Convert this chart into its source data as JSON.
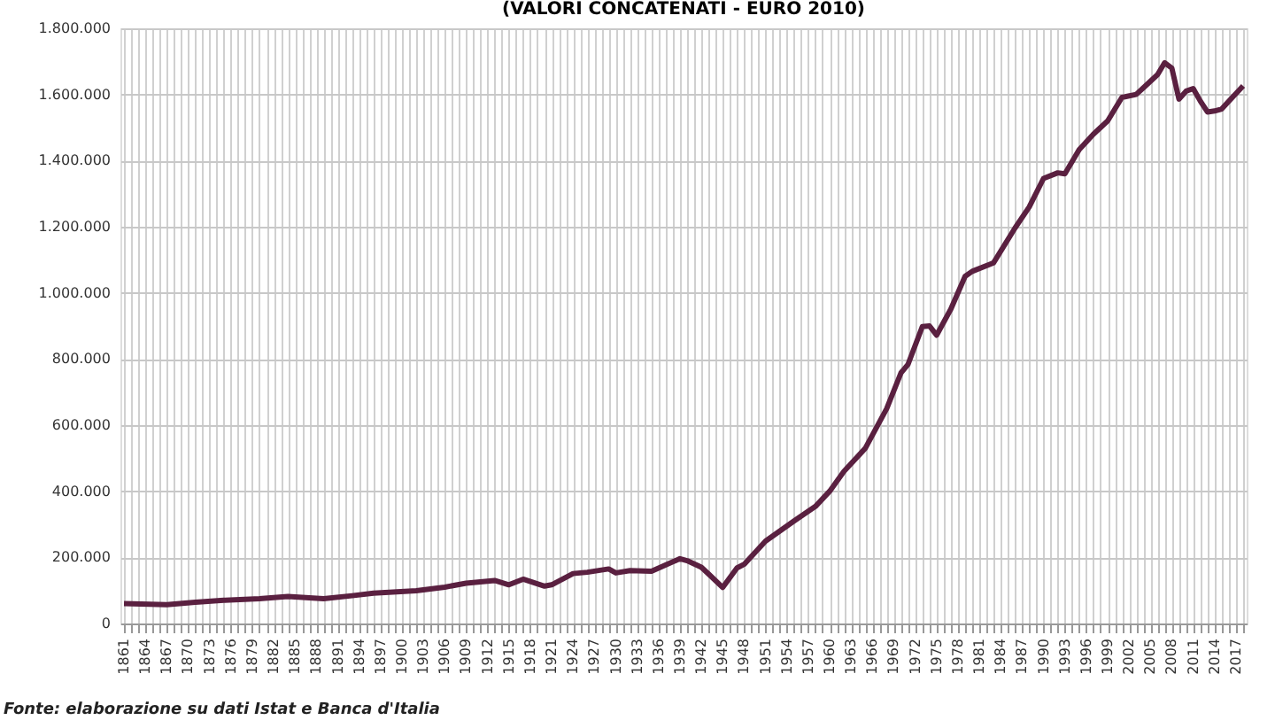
{
  "chart_data": {
    "type": "line",
    "title": "(VALORI CONCATENATI - EURO 2010)",
    "annotations": [
      "Fonte: elaborazione su dati Istat e Banca d'Italia"
    ],
    "x": [
      1861,
      1867,
      1871,
      1875,
      1880,
      1884,
      1889,
      1893,
      1896,
      1902,
      1906,
      1909,
      1913,
      1915,
      1917,
      1920,
      1921,
      1924,
      1926,
      1929,
      1930,
      1932,
      1935,
      1939,
      1940,
      1942,
      1943,
      1945,
      1947,
      1948,
      1951,
      1955,
      1958,
      1960,
      1962,
      1965,
      1968,
      1970,
      1971,
      1973,
      1974,
      1975,
      1977,
      1979,
      1980,
      1983,
      1986,
      1988,
      1990,
      1992,
      1993,
      1995,
      1997,
      1999,
      2001,
      2003,
      2004,
      2006,
      2007,
      2008,
      2009,
      2010,
      2011,
      2012,
      2013,
      2014,
      2015,
      2016,
      2018
    ],
    "series": [
      {
        "color": "#5a2040",
        "values": [
          60000,
          57000,
          64000,
          70000,
          75000,
          82000,
          75000,
          84000,
          92000,
          99000,
          110000,
          122000,
          130000,
          117000,
          134000,
          113000,
          117000,
          151000,
          155000,
          165000,
          153000,
          160000,
          158000,
          196000,
          190000,
          170000,
          150000,
          109000,
          168000,
          179000,
          249000,
          310000,
          354000,
          400000,
          460000,
          530000,
          650000,
          758000,
          784000,
          898000,
          900000,
          872000,
          951000,
          1050000,
          1065000,
          1091000,
          1196000,
          1260000,
          1346000,
          1363000,
          1360000,
          1433000,
          1480000,
          1520000,
          1591000,
          1600000,
          1620000,
          1660000,
          1696000,
          1680000,
          1586000,
          1610000,
          1618000,
          1580000,
          1547000,
          1550000,
          1556000,
          1580000,
          1626000
        ]
      }
    ],
    "xlim": [
      1860.5,
      2018.5
    ],
    "xticks": [
      1861,
      {
        "value": 1862,
        "label": null
      },
      {
        "value": 1863,
        "label": null
      },
      1864,
      {
        "value": 1865,
        "label": null
      },
      {
        "value": 1866,
        "label": null
      },
      1867,
      {
        "value": 1868,
        "label": null
      },
      {
        "value": 1869,
        "label": null
      },
      1870,
      {
        "value": 1871,
        "label": null
      },
      {
        "value": 1872,
        "label": null
      },
      1873,
      {
        "value": 1874,
        "label": null
      },
      {
        "value": 1875,
        "label": null
      },
      1876,
      {
        "value": 1877,
        "label": null
      },
      {
        "value": 1878,
        "label": null
      },
      1879,
      {
        "value": 1880,
        "label": null
      },
      {
        "value": 1881,
        "label": null
      },
      1882,
      {
        "value": 1883,
        "label": null
      },
      {
        "value": 1884,
        "label": null
      },
      1885,
      {
        "value": 1886,
        "label": null
      },
      {
        "value": 1887,
        "label": null
      },
      1888,
      {
        "value": 1889,
        "label": null
      },
      {
        "value": 1890,
        "label": null
      },
      1891,
      {
        "value": 1892,
        "label": null
      },
      {
        "value": 1893,
        "label": null
      },
      1894,
      {
        "value": 1895,
        "label": null
      },
      {
        "value": 1896,
        "label": null
      },
      1897,
      {
        "value": 1898,
        "label": null
      },
      {
        "value": 1899,
        "label": null
      },
      1900,
      {
        "value": 1901,
        "label": null
      },
      {
        "value": 1902,
        "label": null
      },
      1903,
      {
        "value": 1904,
        "label": null
      },
      {
        "value": 1905,
        "label": null
      },
      1906,
      {
        "value": 1907,
        "label": null
      },
      {
        "value": 1908,
        "label": null
      },
      1909,
      {
        "value": 1910,
        "label": null
      },
      {
        "value": 1911,
        "label": null
      },
      1912,
      {
        "value": 1913,
        "label": null
      },
      {
        "value": 1914,
        "label": null
      },
      1915,
      {
        "value": 1916,
        "label": null
      },
      {
        "value": 1917,
        "label": null
      },
      1918,
      {
        "value": 1919,
        "label": null
      },
      {
        "value": 1920,
        "label": null
      },
      1921,
      {
        "value": 1922,
        "label": null
      },
      {
        "value": 1923,
        "label": null
      },
      1924,
      {
        "value": 1925,
        "label": null
      },
      {
        "value": 1926,
        "label": null
      },
      1927,
      {
        "value": 1928,
        "label": null
      },
      {
        "value": 1929,
        "label": null
      },
      1930,
      {
        "value": 1931,
        "label": null
      },
      {
        "value": 1932,
        "label": null
      },
      1933,
      {
        "value": 1934,
        "label": null
      },
      {
        "value": 1935,
        "label": null
      },
      1936,
      {
        "value": 1937,
        "label": null
      },
      {
        "value": 1938,
        "label": null
      },
      1939,
      {
        "value": 1940,
        "label": null
      },
      {
        "value": 1941,
        "label": null
      },
      1942,
      {
        "value": 1943,
        "label": null
      },
      {
        "value": 1944,
        "label": null
      },
      1945,
      {
        "value": 1946,
        "label": null
      },
      {
        "value": 1947,
        "label": null
      },
      1948,
      {
        "value": 1949,
        "label": null
      },
      {
        "value": 1950,
        "label": null
      },
      1951,
      {
        "value": 1952,
        "label": null
      },
      {
        "value": 1953,
        "label": null
      },
      1954,
      {
        "value": 1955,
        "label": null
      },
      {
        "value": 1956,
        "label": null
      },
      1957,
      {
        "value": 1958,
        "label": null
      },
      {
        "value": 1959,
        "label": null
      },
      1960,
      {
        "value": 1961,
        "label": null
      },
      {
        "value": 1962,
        "label": null
      },
      1963,
      {
        "value": 1964,
        "label": null
      },
      {
        "value": 1965,
        "label": null
      },
      1966,
      {
        "value": 1967,
        "label": null
      },
      {
        "value": 1968,
        "label": null
      },
      1969,
      {
        "value": 1970,
        "label": null
      },
      {
        "value": 1971,
        "label": null
      },
      1972,
      {
        "value": 1973,
        "label": null
      },
      {
        "value": 1974,
        "label": null
      },
      1975,
      {
        "value": 1976,
        "label": null
      },
      {
        "value": 1977,
        "label": null
      },
      1978,
      {
        "value": 1979,
        "label": null
      },
      {
        "value": 1980,
        "label": null
      },
      1981,
      {
        "value": 1982,
        "label": null
      },
      {
        "value": 1983,
        "label": null
      },
      1984,
      {
        "value": 1985,
        "label": null
      },
      {
        "value": 1986,
        "label": null
      },
      1987,
      {
        "value": 1988,
        "label": null
      },
      {
        "value": 1989,
        "label": null
      },
      1990,
      {
        "value": 1991,
        "label": null
      },
      {
        "value": 1992,
        "label": null
      },
      1993,
      {
        "value": 1994,
        "label": null
      },
      {
        "value": 1995,
        "label": null
      },
      1996,
      {
        "value": 1997,
        "label": null
      },
      {
        "value": 1998,
        "label": null
      },
      1999,
      {
        "value": 2000,
        "label": null
      },
      {
        "value": 2001,
        "label": null
      },
      2002,
      {
        "value": 2003,
        "label": null
      },
      {
        "value": 2004,
        "label": null
      },
      2005,
      {
        "value": 2006,
        "label": null
      },
      {
        "value": 2007,
        "label": null
      },
      2008,
      {
        "value": 2009,
        "label": null
      },
      {
        "value": 2010,
        "label": null
      },
      2011,
      {
        "value": 2012,
        "label": null
      },
      {
        "value": 2013,
        "label": null
      },
      2014,
      {
        "value": 2015,
        "label": null
      },
      {
        "value": 2016,
        "label": null
      },
      2017,
      {
        "value": 2018,
        "label": null
      }
    ],
    "ylim": [
      0,
      1800000
    ],
    "yticks": [
      0,
      {
        "value": 200000,
        "label": "200.000"
      },
      {
        "value": 400000,
        "label": "400.000"
      },
      {
        "value": 600000,
        "label": "600.000"
      },
      {
        "value": 800000,
        "label": "800.000"
      },
      {
        "value": 1000000,
        "label": "1.000.000"
      },
      {
        "value": 1200000,
        "label": "1.200.000"
      },
      {
        "value": 1400000,
        "label": "1.400.000"
      },
      {
        "value": 1600000,
        "label": "1.600.000"
      },
      {
        "value": 1800000,
        "label": "1.800.000"
      }
    ],
    "grid": true,
    "marker": "none",
    "line_style": "solid"
  }
}
